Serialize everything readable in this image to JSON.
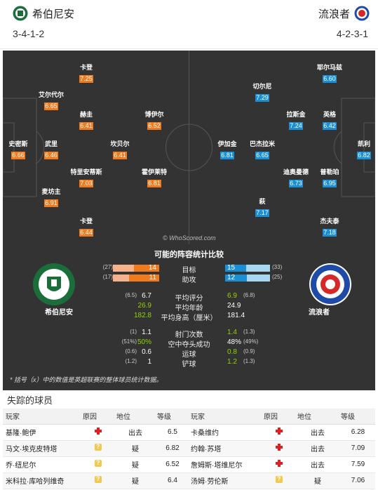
{
  "header": {
    "home_team": "希伯尼安",
    "away_team": "流浪者",
    "home_formation": "3-4-1-2",
    "away_formation": "4-2-3-1",
    "home_color": "#1b6e3a",
    "away_color": "#1e4aa8"
  },
  "pitch": {
    "watermark": "© WhoScored.com",
    "home_players": [
      {
        "name": "卡登",
        "rating": "7.25"
      },
      {
        "name": "艾尔代尔",
        "rating": "6.65"
      },
      {
        "name": "赫圭",
        "rating": "6.41"
      },
      {
        "name": "博伊尔",
        "rating": "6.52"
      },
      {
        "name": "史密斯",
        "rating": "6.66"
      },
      {
        "name": "武里",
        "rating": "6.46"
      },
      {
        "name": "坎贝尔",
        "rating": "6.41"
      },
      {
        "name": "特里安蒂斯",
        "rating": "7.03"
      },
      {
        "name": "霍伊莱特",
        "rating": "6.81"
      },
      {
        "name": "麦坊主",
        "rating": "6.91"
      },
      {
        "name": "卡登",
        "rating": "6.44"
      }
    ],
    "away_players": [
      {
        "name": "耶尔马兹",
        "rating": "6.60"
      },
      {
        "name": "切尔尼",
        "rating": "7.29"
      },
      {
        "name": "拉斯金",
        "rating": "7.24"
      },
      {
        "name": "英格",
        "rating": "6.42"
      },
      {
        "name": "伊加金",
        "rating": "6.81"
      },
      {
        "name": "巴杰拉米",
        "rating": "6.65"
      },
      {
        "name": "凯利",
        "rating": "6.82"
      },
      {
        "name": "迪奥曼德",
        "rating": "6.73"
      },
      {
        "name": "普勒珀",
        "rating": "6.95"
      },
      {
        "name": "萩",
        "rating": "7.17"
      },
      {
        "name": "杰夫泰",
        "rating": "7.18"
      }
    ]
  },
  "stats": {
    "title": "可能的阵容统计比较",
    "home_label": "希伯尼安",
    "away_label": "流浪者",
    "rows": [
      {
        "label": "目标",
        "home": "14",
        "home_season": "(27)",
        "away": "15",
        "away_season": "(33)"
      },
      {
        "label": "助攻",
        "home": "11",
        "home_season": "(17)",
        "away": "12",
        "away_season": "(25)"
      },
      {
        "label": "平均评分",
        "home": "6.7",
        "home_season": "(6.5)",
        "away": "6.9",
        "away_season": "(6.8)"
      },
      {
        "label": "平均年龄",
        "home": "26.9",
        "home_season": "",
        "away": "24.9",
        "away_season": ""
      },
      {
        "label": "平均身高（厘米）",
        "home": "182.8",
        "home_season": "",
        "away": "181.4",
        "away_season": ""
      },
      {
        "label": "射门次数",
        "home": "1.1",
        "home_season": "(1)",
        "away": "1.4",
        "away_season": "(1.3)"
      },
      {
        "label": "空中夺头成功",
        "home": "50%",
        "home_season": "(51%)",
        "away": "48%",
        "away_season": "(49%)"
      },
      {
        "label": "运球",
        "home": "0.6",
        "home_season": "(0.6)",
        "away": "0.8",
        "away_season": "(0.9)"
      },
      {
        "label": "铲球",
        "home": "1",
        "home_season": "(1.2)",
        "away": "1.2",
        "away_season": "(1.3)"
      }
    ],
    "note": "* 括号（x）中的数值是英超联赛的整体球员统计数据。"
  },
  "missing": {
    "title": "失踪的球员",
    "headers": [
      "玩家",
      "原因",
      "地位",
      "等级",
      "玩家",
      "原因",
      "地位",
      "等级"
    ],
    "rows": [
      {
        "home_player": "基隆·鲍伊",
        "home_reason": "injury-icon",
        "home_status": "出去",
        "home_rating": "6.5",
        "away_player": "卡桑维约",
        "away_reason": "injury-icon",
        "away_status": "出去",
        "away_rating": "6.28"
      },
      {
        "home_player": "马文·埃克皮特塔",
        "home_reason": "doubt-icon",
        "home_status": "疑",
        "home_rating": "6.82",
        "away_player": "约翰·苏塔",
        "away_reason": "injury-icon",
        "away_status": "出去",
        "away_rating": "7.09"
      },
      {
        "home_player": "乔·纽尼尔",
        "home_reason": "doubt-icon",
        "home_status": "疑",
        "home_rating": "6.52",
        "away_player": "詹姆斯·塔维尼尔",
        "away_reason": "injury-icon",
        "away_status": "出去",
        "away_rating": "7.59"
      },
      {
        "home_player": "米科拉·库哈列维奇",
        "home_reason": "doubt-icon",
        "home_status": "疑",
        "home_rating": "6.4",
        "away_player": "汤姆·劳伦斯",
        "away_reason": "doubt-icon",
        "away_status": "疑",
        "away_rating": "7.06"
      }
    ]
  }
}
